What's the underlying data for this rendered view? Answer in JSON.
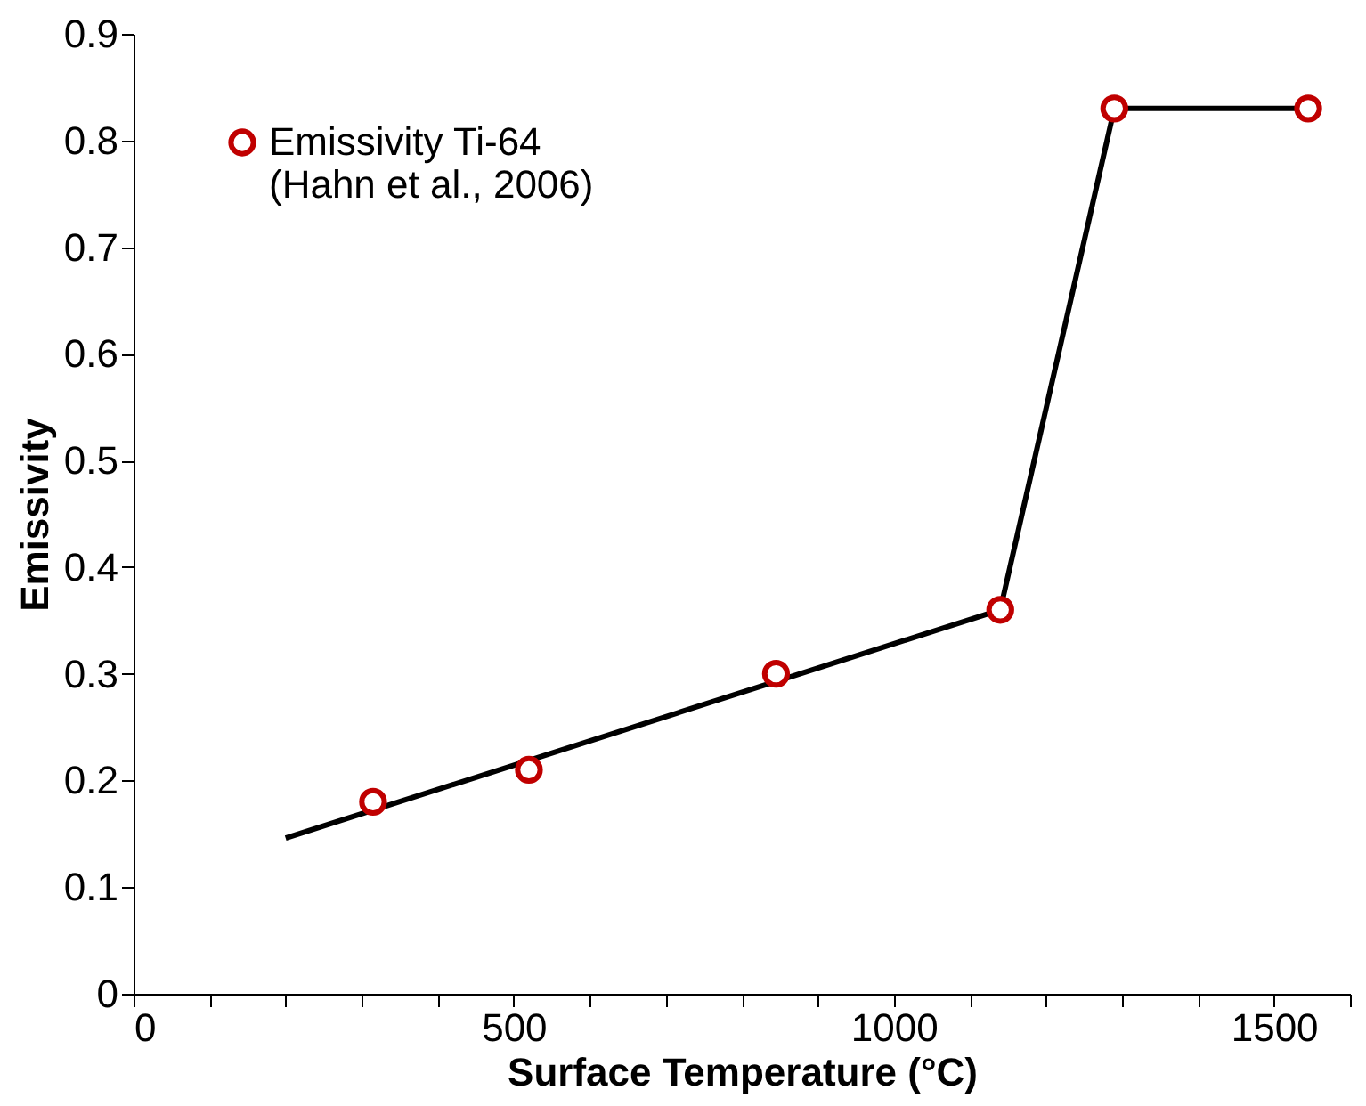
{
  "chart_data": {
    "type": "scatter",
    "xlabel": "Surface Temperature (°C)",
    "ylabel": "Emissivity",
    "xlim": [
      0,
      1600
    ],
    "ylim": [
      0,
      0.9
    ],
    "xticks": [
      0,
      {
        "value": 100,
        "label": null
      },
      {
        "value": 200,
        "label": null
      },
      {
        "value": 300,
        "label": null
      },
      {
        "value": 400,
        "label": null
      },
      500,
      {
        "value": 600,
        "label": null
      },
      {
        "value": 700,
        "label": null
      },
      {
        "value": 800,
        "label": null
      },
      {
        "value": 900,
        "label": null
      },
      1000,
      {
        "value": 1100,
        "label": null
      },
      {
        "value": 1200,
        "label": null
      },
      {
        "value": 1300,
        "label": null
      },
      {
        "value": 1400,
        "label": null
      },
      1500,
      {
        "value": 1600,
        "label": null
      }
    ],
    "yticks": [
      0,
      0.1,
      0.2,
      0.3,
      0.4,
      0.5,
      0.6,
      0.7,
      0.8,
      0.9
    ],
    "grid": false,
    "legend": "top left",
    "series": [
      {
        "type": "line",
        "color": "#000000",
        "marker": "none",
        "line_style": "solid",
        "x": [
          200,
          1140,
          1290,
          1545
        ],
        "values": [
          0.146,
          0.36,
          0.83,
          0.83
        ]
      },
      {
        "name": "Emissivity Ti-64\n(Hahn et al., 2006)",
        "color": "#c00000",
        "marker": "circle",
        "x": [
          315,
          520,
          845,
          1140,
          1290,
          1545
        ],
        "values": [
          0.18,
          0.21,
          0.3,
          0.36,
          0.83,
          0.83
        ]
      }
    ]
  }
}
